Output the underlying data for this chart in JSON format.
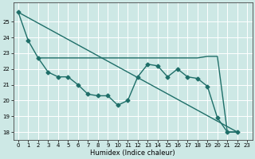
{
  "title": "",
  "xlabel": "Humidex (Indice chaleur)",
  "bg_color": "#cde8e5",
  "grid_color": "#ffffff",
  "line_color": "#1e6e68",
  "xlim": [
    -0.5,
    23.5
  ],
  "ylim": [
    17.5,
    26.2
  ],
  "yticks": [
    18,
    19,
    20,
    21,
    22,
    23,
    24,
    25
  ],
  "xticks": [
    0,
    1,
    2,
    3,
    4,
    5,
    6,
    7,
    8,
    9,
    10,
    11,
    12,
    13,
    14,
    15,
    16,
    17,
    18,
    19,
    20,
    21,
    22,
    23
  ],
  "line1_x": [
    0,
    1,
    2,
    3,
    4,
    5,
    6,
    7,
    8,
    9,
    10,
    11,
    12,
    13,
    14,
    15,
    16,
    17,
    18,
    19,
    20,
    21,
    22
  ],
  "line1_y": [
    25.6,
    23.8,
    22.7,
    21.8,
    21.5,
    21.5,
    21.0,
    20.4,
    20.3,
    20.3,
    19.7,
    20.0,
    21.5,
    22.3,
    22.2,
    21.5,
    22.0,
    21.5,
    21.4,
    20.9,
    18.9,
    18.0,
    18.0
  ],
  "line2_x": [
    2,
    3,
    4,
    5,
    6,
    7,
    8,
    9,
    10,
    11,
    12,
    13,
    14,
    15,
    16,
    17,
    18,
    19,
    20,
    21,
    22
  ],
  "line2_y": [
    22.7,
    22.7,
    22.7,
    22.7,
    22.7,
    22.7,
    22.7,
    22.7,
    22.7,
    22.7,
    22.7,
    22.7,
    22.7,
    22.7,
    22.7,
    22.7,
    22.7,
    22.8,
    22.8,
    18.0,
    18.0
  ],
  "line3_x": [
    0,
    22
  ],
  "line3_y": [
    25.6,
    18.0
  ],
  "marker": "D",
  "markersize": 2.5,
  "linewidth": 1.0
}
